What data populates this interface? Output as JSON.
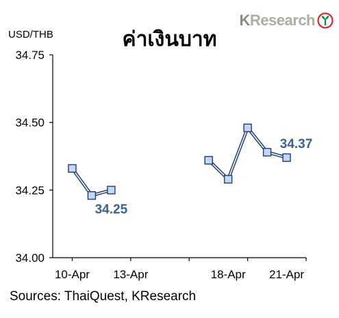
{
  "logo": {
    "brand": "KResearch",
    "icon": "kasikorn-leaf-logo-icon"
  },
  "source_note": "Sources: ThaiQuest, KResearch",
  "chart_data": {
    "type": "line",
    "title": "ค่าเงินบาท",
    "unit_label": "USD/THB",
    "xlabel": "",
    "ylabel": "",
    "ylim": [
      34.0,
      34.75
    ],
    "yticks": [
      "34.00",
      "34.25",
      "34.50",
      "34.75"
    ],
    "xlim": [
      "2009-04-09",
      "2009-04-22"
    ],
    "xtick_labels": [
      "10-Apr",
      "13-Apr",
      "18-Apr",
      "21-Apr"
    ],
    "grid": false,
    "segments": [
      {
        "points": [
          {
            "x": "2009-04-10",
            "y": 34.33
          },
          {
            "x": "2009-04-11",
            "y": 34.23
          },
          {
            "x": "2009-04-12",
            "y": 34.25
          }
        ]
      },
      {
        "points": [
          {
            "x": "2009-04-17",
            "y": 34.36
          },
          {
            "x": "2009-04-18",
            "y": 34.29
          },
          {
            "x": "2009-04-19",
            "y": 34.48
          },
          {
            "x": "2009-04-20",
            "y": 34.39
          },
          {
            "x": "2009-04-21",
            "y": 34.37
          }
        ]
      }
    ],
    "data_labels": [
      {
        "x": "2009-04-12",
        "text": "34.25"
      },
      {
        "x": "2009-04-21",
        "text": "34.37"
      }
    ],
    "colors": {
      "line": "#1f3c6e",
      "line_highlight": "#ffffff",
      "marker_fill": "#c5d8f1",
      "marker_stroke": "#1f3c6e",
      "data_label": "#3c6291",
      "axis": "#000000"
    }
  }
}
